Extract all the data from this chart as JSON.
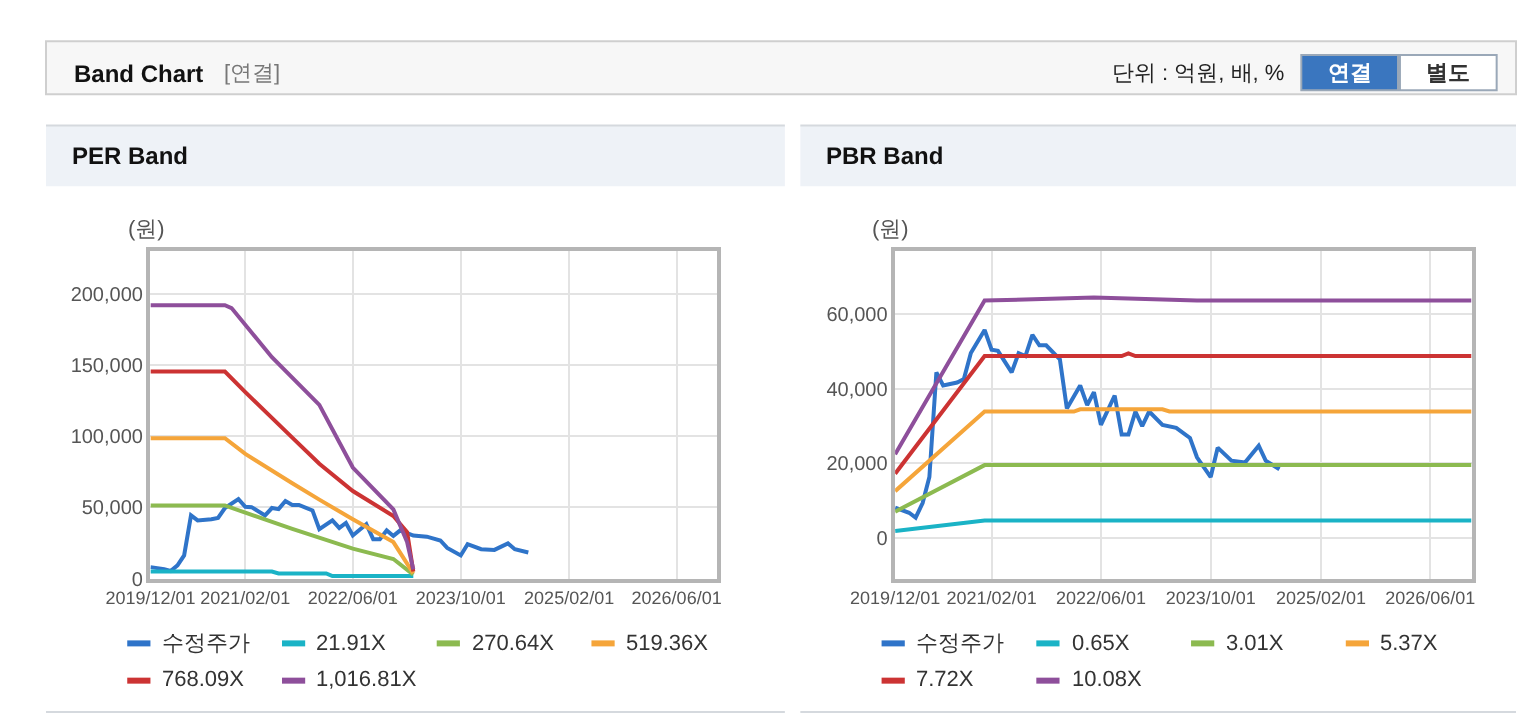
{
  "chart_data": [
    {
      "type": "line",
      "title": "PER Band",
      "ylabel": "(원)",
      "annotations": [
        "Band Chart",
        "[연결]",
        "단위 : 억원, 배, %",
        "연결",
        "별도"
      ],
      "xlim": [
        "2019-12-01",
        "2026-12-01"
      ],
      "xticks": [
        {
          "value": "2019-12-01",
          "label": "2019/12/01"
        },
        {
          "value": "2021-02-01",
          "label": "2021/02/01"
        },
        {
          "value": "2022-06-01",
          "label": "2022/06/01"
        },
        {
          "value": "2023-10-01",
          "label": "2023/10/01"
        },
        {
          "value": "2025-02-01",
          "label": "2025/02/01"
        },
        {
          "value": "2026-06-01",
          "label": "2026/06/01"
        }
      ],
      "ylim": [
        0,
        230000
      ],
      "yticks": [
        {
          "value": 0,
          "label": "0"
        },
        {
          "value": 50000,
          "label": "50,000"
        },
        {
          "value": 100000,
          "label": "100,000"
        },
        {
          "value": 150000,
          "label": "150,000"
        },
        {
          "value": 200000,
          "label": "200,000"
        }
      ],
      "grid": true,
      "legend": "bottom",
      "marker": "none",
      "line_style": "solid",
      "series": [
        {
          "name": "수정주가",
          "color": "#2f74c9",
          "x": [
            "2019-12-01",
            "2020-02-01",
            "2020-03-01",
            "2020-04-01",
            "2020-05-01",
            "2020-06-01",
            "2020-07-01",
            "2020-09-01",
            "2020-10-01",
            "2020-11-01",
            "2021-01-01",
            "2021-02-01",
            "2021-03-01",
            "2021-05-01",
            "2021-06-01",
            "2021-07-01",
            "2021-08-01",
            "2021-09-01",
            "2021-10-01",
            "2021-12-01",
            "2022-01-01",
            "2022-03-01",
            "2022-04-01",
            "2022-05-01",
            "2022-06-01",
            "2022-08-01",
            "2022-09-01",
            "2022-10-01",
            "2022-11-01",
            "2022-12-01",
            "2023-01-01",
            "2023-03-01",
            "2023-05-01",
            "2023-07-01",
            "2023-08-01",
            "2023-10-01",
            "2023-11-01",
            "2024-01-01",
            "2024-03-01",
            "2024-05-01",
            "2024-06-01",
            "2024-08-01"
          ],
          "values": [
            8100,
            6700,
            5400,
            9300,
            16300,
            44400,
            40900,
            41700,
            42600,
            49600,
            55800,
            50500,
            50200,
            44400,
            49600,
            48800,
            54500,
            51700,
            51700,
            47900,
            34700,
            40900,
            35600,
            39100,
            30300,
            38200,
            27700,
            27700,
            33900,
            30000,
            33900,
            30300,
            29500,
            26800,
            21600,
            16300,
            24200,
            20700,
            20200,
            24700,
            20700,
            18400
          ]
        },
        {
          "name": "21.91X",
          "color": "#1ab3c6",
          "x": [
            "2019-12-01",
            "2021-06-01",
            "2021-07-01",
            "2022-02-01",
            "2022-03-01",
            "2023-03-01"
          ],
          "values": [
            5000,
            5000,
            3700,
            3700,
            1800,
            1800
          ]
        },
        {
          "name": "270.64X",
          "color": "#8cba50",
          "x": [
            "2019-12-01",
            "2020-11-01",
            "2021-02-01",
            "2021-09-01",
            "2022-06-01",
            "2022-12-01",
            "2023-03-01"
          ],
          "values": [
            51400,
            51400,
            46300,
            34900,
            21100,
            13800,
            2800
          ]
        },
        {
          "name": "519.36X",
          "color": "#f5a53a",
          "x": [
            "2019-12-01",
            "2020-11-01",
            "2021-02-01",
            "2021-09-01",
            "2022-01-01",
            "2022-06-01",
            "2022-12-01",
            "2023-03-01"
          ],
          "values": [
            98600,
            98600,
            87600,
            67000,
            55500,
            41700,
            25700,
            3700
          ]
        },
        {
          "name": "768.09X",
          "color": "#cc3333",
          "x": [
            "2019-12-01",
            "2020-11-01",
            "2021-02-01",
            "2021-09-01",
            "2022-01-01",
            "2022-06-01",
            "2022-12-01",
            "2023-02-01",
            "2023-03-01"
          ],
          "values": [
            145400,
            145400,
            131000,
            99000,
            80700,
            61500,
            44000,
            32600,
            5000
          ]
        },
        {
          "name": "1,016.81X",
          "color": "#8e4f9b",
          "x": [
            "2019-12-01",
            "2020-11-01",
            "2020-12-01",
            "2021-06-01",
            "2022-01-01",
            "2022-06-01",
            "2022-12-01",
            "2023-02-01",
            "2023-03-01"
          ],
          "values": [
            192000,
            192000,
            190000,
            155500,
            122000,
            78000,
            48600,
            25700,
            6400
          ]
        }
      ]
    },
    {
      "type": "line",
      "title": "PBR Band",
      "ylabel": "(원)",
      "xlim": [
        "2019-12-01",
        "2026-12-01"
      ],
      "xticks": [
        {
          "value": "2019-12-01",
          "label": "2019/12/01"
        },
        {
          "value": "2021-02-01",
          "label": "2021/02/01"
        },
        {
          "value": "2022-06-01",
          "label": "2022/06/01"
        },
        {
          "value": "2023-10-01",
          "label": "2023/10/01"
        },
        {
          "value": "2025-02-01",
          "label": "2025/02/01"
        },
        {
          "value": "2026-06-01",
          "label": "2026/06/01"
        }
      ],
      "ylim": [
        -11000,
        77000
      ],
      "yticks": [
        {
          "value": 0,
          "label": "0"
        },
        {
          "value": 20000,
          "label": "20,000"
        },
        {
          "value": 40000,
          "label": "40,000"
        },
        {
          "value": 60000,
          "label": "60,000"
        }
      ],
      "grid": true,
      "legend": "bottom",
      "marker": "none",
      "line_style": "solid",
      "series": [
        {
          "name": "수정주가",
          "color": "#2f74c9",
          "x": [
            "2019-12-01",
            "2020-02-01",
            "2020-03-01",
            "2020-04-01",
            "2020-05-01",
            "2020-06-01",
            "2020-07-01",
            "2020-09-01",
            "2020-10-01",
            "2020-11-01",
            "2021-01-01",
            "2021-02-01",
            "2021-03-01",
            "2021-05-01",
            "2021-06-01",
            "2021-07-01",
            "2021-08-01",
            "2021-09-01",
            "2021-10-01",
            "2021-12-01",
            "2022-01-01",
            "2022-03-01",
            "2022-04-01",
            "2022-05-01",
            "2022-06-01",
            "2022-08-01",
            "2022-09-01",
            "2022-10-01",
            "2022-11-01",
            "2022-12-01",
            "2023-01-01",
            "2023-03-01",
            "2023-05-01",
            "2023-07-01",
            "2023-08-01",
            "2023-10-01",
            "2023-11-01",
            "2024-01-01",
            "2024-03-01",
            "2024-05-01",
            "2024-06-01",
            "2024-08-01"
          ],
          "values": [
            8100,
            6700,
            5400,
            9300,
            16300,
            44400,
            40900,
            41700,
            42600,
            49600,
            55800,
            50500,
            50200,
            44400,
            49600,
            48800,
            54500,
            51700,
            51700,
            47900,
            34700,
            40900,
            35600,
            39100,
            30300,
            38200,
            27700,
            27700,
            33900,
            30000,
            33900,
            30300,
            29500,
            26800,
            21600,
            16300,
            24200,
            20700,
            20200,
            24700,
            20700,
            18400
          ]
        },
        {
          "name": "0.65X",
          "color": "#1ab3c6",
          "x": [
            "2019-12-01",
            "2021-01-01",
            "2026-12-01"
          ],
          "values": [
            1800,
            4600,
            4600
          ]
        },
        {
          "name": "3.01X",
          "color": "#8cba50",
          "x": [
            "2019-12-01",
            "2021-01-01",
            "2026-12-01"
          ],
          "values": [
            7000,
            19500,
            19500
          ]
        },
        {
          "name": "5.37X",
          "color": "#f5a53a",
          "x": [
            "2019-12-01",
            "2021-01-01",
            "2022-02-01",
            "2022-03-01",
            "2023-03-01",
            "2023-04-01",
            "2026-12-01"
          ],
          "values": [
            12500,
            33900,
            33900,
            34500,
            34500,
            33900,
            33900
          ]
        },
        {
          "name": "7.72X",
          "color": "#cc3333",
          "x": [
            "2019-12-01",
            "2021-01-01",
            "2022-09-01",
            "2022-10-01",
            "2022-11-01",
            "2026-12-01"
          ],
          "values": [
            17200,
            48800,
            48800,
            49500,
            48800,
            48800
          ]
        },
        {
          "name": "10.08X",
          "color": "#8e4f9b",
          "x": [
            "2019-12-01",
            "2021-01-01",
            "2022-05-01",
            "2023-08-01",
            "2026-12-01"
          ],
          "values": [
            22400,
            63700,
            64500,
            63700,
            63700
          ]
        }
      ]
    }
  ]
}
